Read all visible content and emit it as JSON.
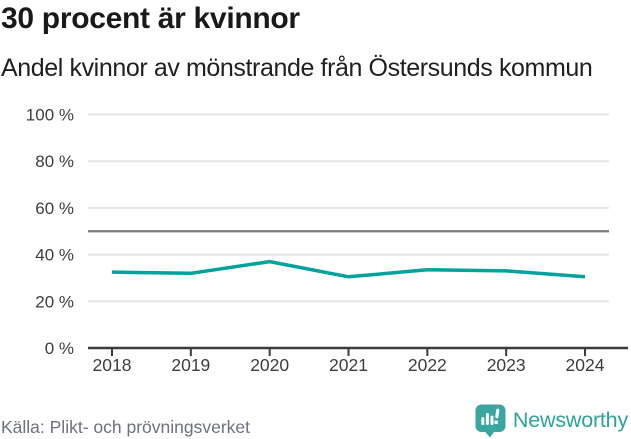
{
  "header": {
    "title": "30 procent är kvinnor",
    "subtitle": "Andel kvinnor av mönstrande från Östersunds kommun"
  },
  "footer": {
    "source": "Källa: Plikt- och prövningsverket",
    "brand": "Newsworthy"
  },
  "chart_data": {
    "type": "line",
    "title": "30 procent är kvinnor",
    "subtitle": "Andel kvinnor av mönstrande från Östersunds kommun",
    "x": [
      2018,
      2019,
      2020,
      2021,
      2022,
      2023,
      2024
    ],
    "series": [
      {
        "name": "Andel kvinnor av mönstrande",
        "values": [
          32.5,
          32,
          37,
          30.5,
          33.5,
          33,
          30.5
        ],
        "color": "#00a29a"
      }
    ],
    "ylim": [
      0,
      100
    ],
    "y_ticks": [
      0,
      20,
      40,
      60,
      80,
      100
    ],
    "y_tick_suffix": " %",
    "reference_line": {
      "value": 50,
      "color": "#7c7c7c"
    },
    "grid": "horizontal",
    "legend": "none",
    "colors": {
      "grid": "#e5e5e5",
      "axis": "#3c3c3c",
      "tick_label": "#3d3d3d",
      "accent": "#00a29a",
      "brand": "#2fa29c"
    }
  }
}
